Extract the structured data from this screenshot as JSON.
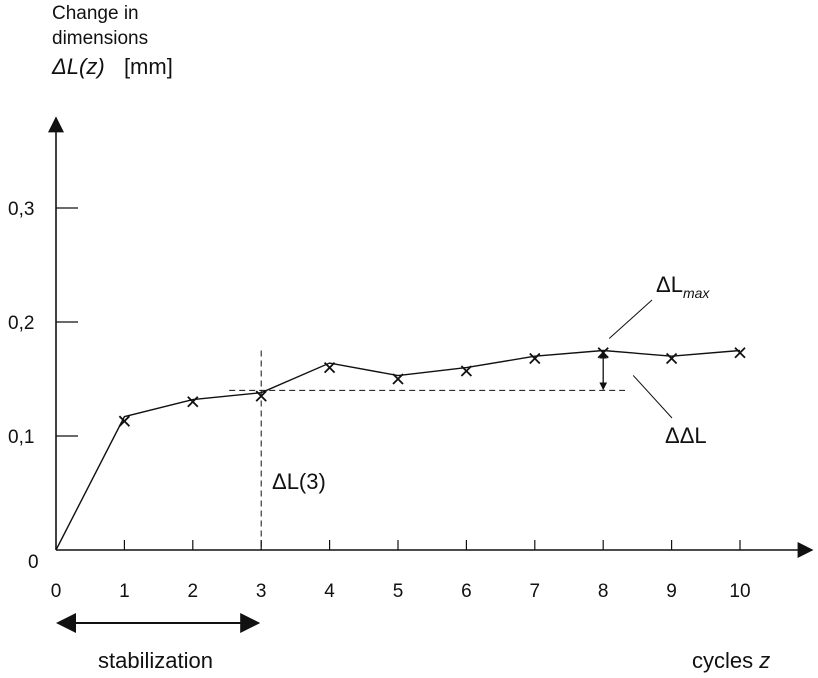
{
  "chart_data": {
    "type": "line",
    "ylabel_line1": "Change in",
    "ylabel_line2": "dimensions",
    "ylabel_symbol": "ΔL(z)",
    "ylabel_unit": "[mm]",
    "xlabel": "cycles",
    "xlabel_var": "z",
    "x_ticks": [
      "0",
      "1",
      "2",
      "3",
      "4",
      "5",
      "6",
      "7",
      "8",
      "9",
      "10"
    ],
    "y_ticks": [
      {
        "value": 0.1,
        "label": "0,1"
      },
      {
        "value": 0.2,
        "label": "0,2"
      },
      {
        "value": 0.3,
        "label": "0,3"
      }
    ],
    "y_zero_label": "0",
    "xlim": [
      0,
      11
    ],
    "ylim": [
      0,
      0.37
    ],
    "line": {
      "x": [
        0,
        1,
        2,
        3,
        4,
        5,
        6,
        7,
        8,
        9,
        10
      ],
      "y": [
        0,
        0.117,
        0.132,
        0.138,
        0.164,
        0.153,
        0.16,
        0.17,
        0.175,
        0.17,
        0.175
      ]
    },
    "markers": {
      "x": [
        1,
        2,
        3,
        4,
        5,
        6,
        7,
        8,
        9,
        10
      ],
      "y": [
        0.113,
        0.13,
        0.135,
        0.16,
        0.15,
        0.157,
        0.168,
        0.173,
        0.168,
        0.173
      ]
    },
    "reference_level": 0.14,
    "stabilization_end": 3,
    "annotations": {
      "dl3": "ΔL(3)",
      "ddl": "ΔΔL",
      "dlmax_base": "ΔL",
      "dlmax_sub": "max",
      "stabilization": "stabilization"
    }
  }
}
